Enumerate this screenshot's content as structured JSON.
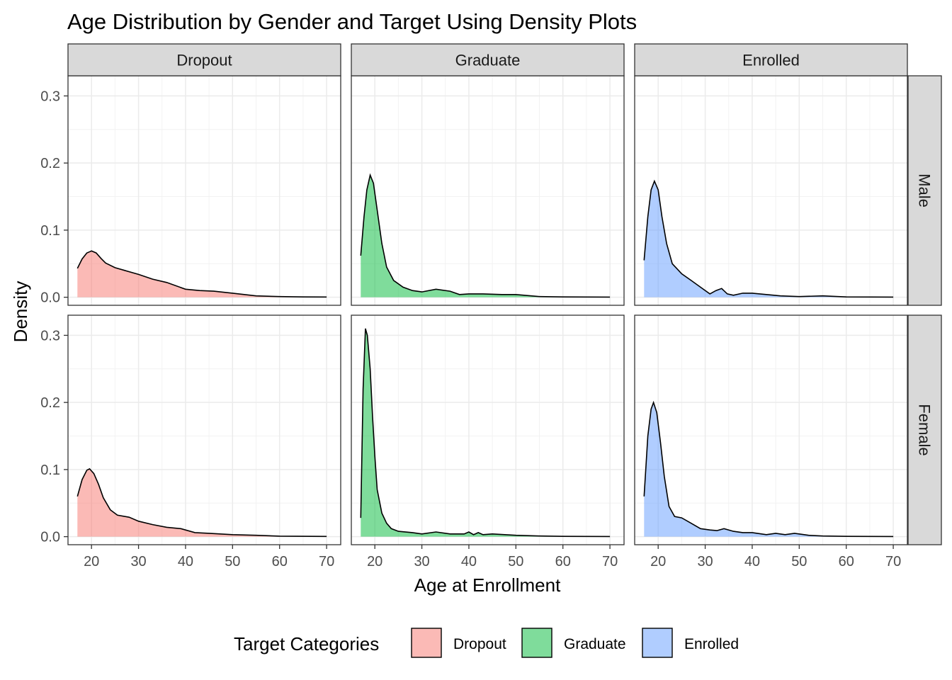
{
  "chart_data": {
    "type": "area",
    "title": "Age Distribution by Gender and Target Using Density Plots",
    "xlabel": "Age at Enrollment",
    "ylabel": "Density",
    "xlim": [
      15,
      73
    ],
    "ylim": [
      -0.012,
      0.33
    ],
    "x_ticks": [
      20,
      30,
      40,
      50,
      60,
      70
    ],
    "y_ticks": [
      0.0,
      0.1,
      0.2,
      0.3
    ],
    "y_tick_labels": [
      "0.0",
      "0.1",
      "0.2",
      "0.3"
    ],
    "grid": true,
    "legend_position": "bottom",
    "legend_title": "Target Categories",
    "facet_columns": [
      "Dropout",
      "Graduate",
      "Enrolled"
    ],
    "facet_rows": [
      "Male",
      "Female"
    ],
    "series": [
      {
        "name": "Dropout",
        "color": "#F8766D"
      },
      {
        "name": "Graduate",
        "color": "#00BA38"
      },
      {
        "name": "Enrolled",
        "color": "#619CFF"
      }
    ],
    "panels": [
      {
        "row": "Male",
        "col": "Dropout",
        "points": [
          [
            17,
            0.043
          ],
          [
            18,
            0.057
          ],
          [
            19,
            0.066
          ],
          [
            20,
            0.069
          ],
          [
            21,
            0.066
          ],
          [
            22,
            0.058
          ],
          [
            23,
            0.051
          ],
          [
            25,
            0.044
          ],
          [
            27,
            0.04
          ],
          [
            30,
            0.034
          ],
          [
            33,
            0.027
          ],
          [
            36,
            0.022
          ],
          [
            40,
            0.012
          ],
          [
            43,
            0.01
          ],
          [
            46,
            0.009
          ],
          [
            50,
            0.006
          ],
          [
            55,
            0.002
          ],
          [
            60,
            0.001
          ],
          [
            65,
            0.0005
          ],
          [
            70,
            0.0003
          ]
        ]
      },
      {
        "row": "Male",
        "col": "Graduate",
        "points": [
          [
            17,
            0.062
          ],
          [
            17.7,
            0.12
          ],
          [
            18.3,
            0.16
          ],
          [
            19,
            0.182
          ],
          [
            19.7,
            0.17
          ],
          [
            20.5,
            0.13
          ],
          [
            21.5,
            0.08
          ],
          [
            22.5,
            0.045
          ],
          [
            24,
            0.025
          ],
          [
            26,
            0.015
          ],
          [
            28,
            0.01
          ],
          [
            30,
            0.008
          ],
          [
            33,
            0.012
          ],
          [
            36,
            0.009
          ],
          [
            38,
            0.004
          ],
          [
            40,
            0.005
          ],
          [
            43,
            0.005
          ],
          [
            47,
            0.004
          ],
          [
            50,
            0.004
          ],
          [
            55,
            0.001
          ],
          [
            60,
            0.0005
          ],
          [
            70,
            0.0002
          ]
        ]
      },
      {
        "row": "Male",
        "col": "Enrolled",
        "points": [
          [
            17,
            0.055
          ],
          [
            17.8,
            0.12
          ],
          [
            18.5,
            0.16
          ],
          [
            19.2,
            0.173
          ],
          [
            20,
            0.16
          ],
          [
            20.8,
            0.12
          ],
          [
            21.8,
            0.08
          ],
          [
            23,
            0.05
          ],
          [
            25,
            0.035
          ],
          [
            27,
            0.025
          ],
          [
            29,
            0.015
          ],
          [
            31,
            0.005
          ],
          [
            32.3,
            0.01
          ],
          [
            33.5,
            0.013
          ],
          [
            34.7,
            0.005
          ],
          [
            36,
            0.003
          ],
          [
            38,
            0.006
          ],
          [
            40,
            0.006
          ],
          [
            43,
            0.004
          ],
          [
            46,
            0.002
          ],
          [
            50,
            0.001
          ],
          [
            55,
            0.002
          ],
          [
            60,
            0.0005
          ],
          [
            70,
            0.0002
          ]
        ]
      },
      {
        "row": "Female",
        "col": "Dropout",
        "points": [
          [
            17,
            0.06
          ],
          [
            18,
            0.085
          ],
          [
            19,
            0.099
          ],
          [
            19.6,
            0.101
          ],
          [
            20.5,
            0.094
          ],
          [
            21.5,
            0.078
          ],
          [
            22.5,
            0.058
          ],
          [
            24,
            0.04
          ],
          [
            25.5,
            0.032
          ],
          [
            28,
            0.029
          ],
          [
            30,
            0.023
          ],
          [
            33,
            0.018
          ],
          [
            36,
            0.014
          ],
          [
            39,
            0.012
          ],
          [
            42,
            0.006
          ],
          [
            45,
            0.005
          ],
          [
            50,
            0.003
          ],
          [
            55,
            0.002
          ],
          [
            60,
            0.0008
          ],
          [
            70,
            0.0003
          ]
        ]
      },
      {
        "row": "Female",
        "col": "Graduate",
        "points": [
          [
            17,
            0.028
          ],
          [
            17.5,
            0.22
          ],
          [
            18,
            0.31
          ],
          [
            18.4,
            0.3
          ],
          [
            19,
            0.25
          ],
          [
            19.5,
            0.18
          ],
          [
            20,
            0.12
          ],
          [
            20.5,
            0.07
          ],
          [
            21.5,
            0.035
          ],
          [
            22.5,
            0.02
          ],
          [
            23.5,
            0.012
          ],
          [
            25,
            0.008
          ],
          [
            28,
            0.006
          ],
          [
            30,
            0.004
          ],
          [
            33,
            0.007
          ],
          [
            36,
            0.004
          ],
          [
            39,
            0.004
          ],
          [
            40,
            0.007
          ],
          [
            41,
            0.003
          ],
          [
            42,
            0.006
          ],
          [
            43,
            0.003
          ],
          [
            45,
            0.004
          ],
          [
            50,
            0.002
          ],
          [
            55,
            0.001
          ],
          [
            60,
            0.0005
          ],
          [
            70,
            0.0002
          ]
        ]
      },
      {
        "row": "Female",
        "col": "Enrolled",
        "points": [
          [
            17,
            0.06
          ],
          [
            17.8,
            0.15
          ],
          [
            18.5,
            0.19
          ],
          [
            19,
            0.2
          ],
          [
            19.7,
            0.185
          ],
          [
            20.5,
            0.14
          ],
          [
            21.3,
            0.09
          ],
          [
            22.3,
            0.045
          ],
          [
            23.5,
            0.03
          ],
          [
            25,
            0.028
          ],
          [
            27,
            0.02
          ],
          [
            29,
            0.012
          ],
          [
            31,
            0.01
          ],
          [
            32.5,
            0.009
          ],
          [
            34,
            0.012
          ],
          [
            36,
            0.008
          ],
          [
            38,
            0.006
          ],
          [
            40,
            0.006
          ],
          [
            43,
            0.003
          ],
          [
            45,
            0.005
          ],
          [
            47,
            0.003
          ],
          [
            49,
            0.005
          ],
          [
            52,
            0.002
          ],
          [
            55,
            0.001
          ],
          [
            60,
            0.0005
          ],
          [
            70,
            0.0002
          ]
        ]
      }
    ]
  }
}
